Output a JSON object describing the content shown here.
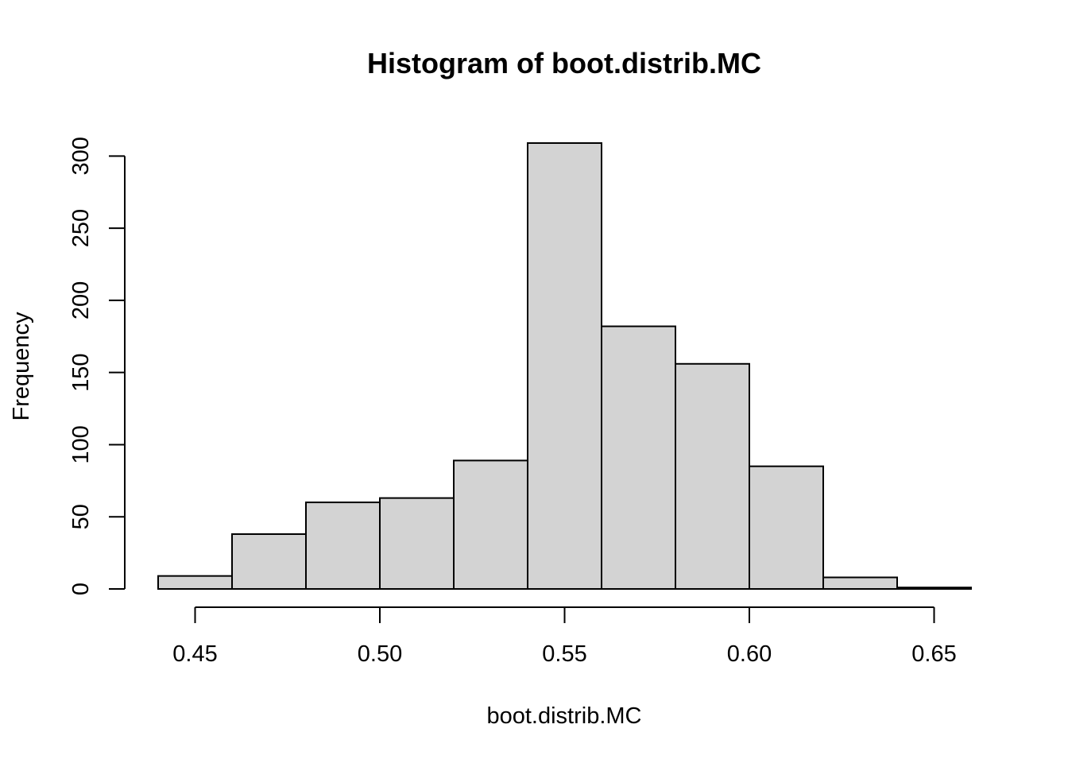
{
  "chart_data": {
    "type": "histogram",
    "title": "Histogram of boot.distrib.MC",
    "xlabel": "boot.distrib.MC",
    "ylabel": "Frequency",
    "bins": [
      {
        "start": 0.44,
        "end": 0.46,
        "count": 9
      },
      {
        "start": 0.46,
        "end": 0.48,
        "count": 38
      },
      {
        "start": 0.48,
        "end": 0.5,
        "count": 60
      },
      {
        "start": 0.5,
        "end": 0.52,
        "count": 63
      },
      {
        "start": 0.52,
        "end": 0.54,
        "count": 89
      },
      {
        "start": 0.54,
        "end": 0.56,
        "count": 309
      },
      {
        "start": 0.56,
        "end": 0.58,
        "count": 182
      },
      {
        "start": 0.58,
        "end": 0.6,
        "count": 156
      },
      {
        "start": 0.6,
        "end": 0.62,
        "count": 85
      },
      {
        "start": 0.62,
        "end": 0.64,
        "count": 8
      },
      {
        "start": 0.64,
        "end": 0.66,
        "count": 1
      }
    ],
    "xticks": [
      0.45,
      0.5,
      0.55,
      0.6,
      0.65
    ],
    "xtick_labels": [
      "0.45",
      "0.50",
      "0.55",
      "0.60",
      "0.65"
    ],
    "yticks": [
      0,
      50,
      100,
      150,
      200,
      250,
      300
    ],
    "ytick_labels": [
      "0",
      "50",
      "100",
      "150",
      "200",
      "250",
      "300"
    ],
    "xlim": [
      0.44,
      0.66
    ],
    "ylim": [
      0,
      309
    ],
    "bar_fill": "#d3d3d3",
    "bar_stroke": "#000000",
    "grid": false
  }
}
